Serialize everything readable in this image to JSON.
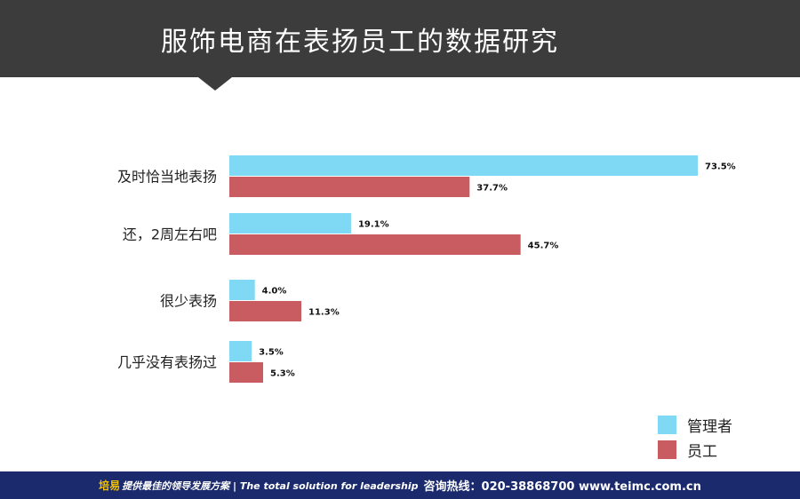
{
  "header": {
    "title": "服饰电商在表扬员工的数据研究"
  },
  "colors": {
    "manager": "#7fd8f4",
    "employee": "#c95c61",
    "header_bg": "#3c3c3c",
    "footer_bg": "#1a2a6c"
  },
  "chart_data": {
    "type": "bar",
    "orientation": "horizontal",
    "title": "服饰电商在表扬员工的数据研究",
    "categories": [
      "及时恰当地表扬",
      "还，2周左右吧",
      "很少表扬",
      "几乎没有表扬过"
    ],
    "series": [
      {
        "name": "管理者",
        "values": [
          73.5,
          19.1,
          4.0,
          3.5
        ],
        "labels": [
          "73.5%",
          "19.1%",
          "4.0%",
          "3.5%"
        ]
      },
      {
        "name": "员工",
        "values": [
          37.7,
          45.7,
          11.3,
          5.3
        ],
        "labels": [
          "37.7%",
          "45.7%",
          "11.3%",
          "5.3%"
        ]
      }
    ],
    "xlim": [
      0,
      73.5
    ],
    "legend_position": "bottom-right",
    "grid": false
  },
  "legend": {
    "items": [
      "管理者",
      "员工"
    ]
  },
  "footer": {
    "brand": "培易",
    "slogan": "提供最佳的领导发展方案 | The total solution for leadership",
    "contact": "咨询热线：020-38868700 www.teimc.com.cn"
  }
}
